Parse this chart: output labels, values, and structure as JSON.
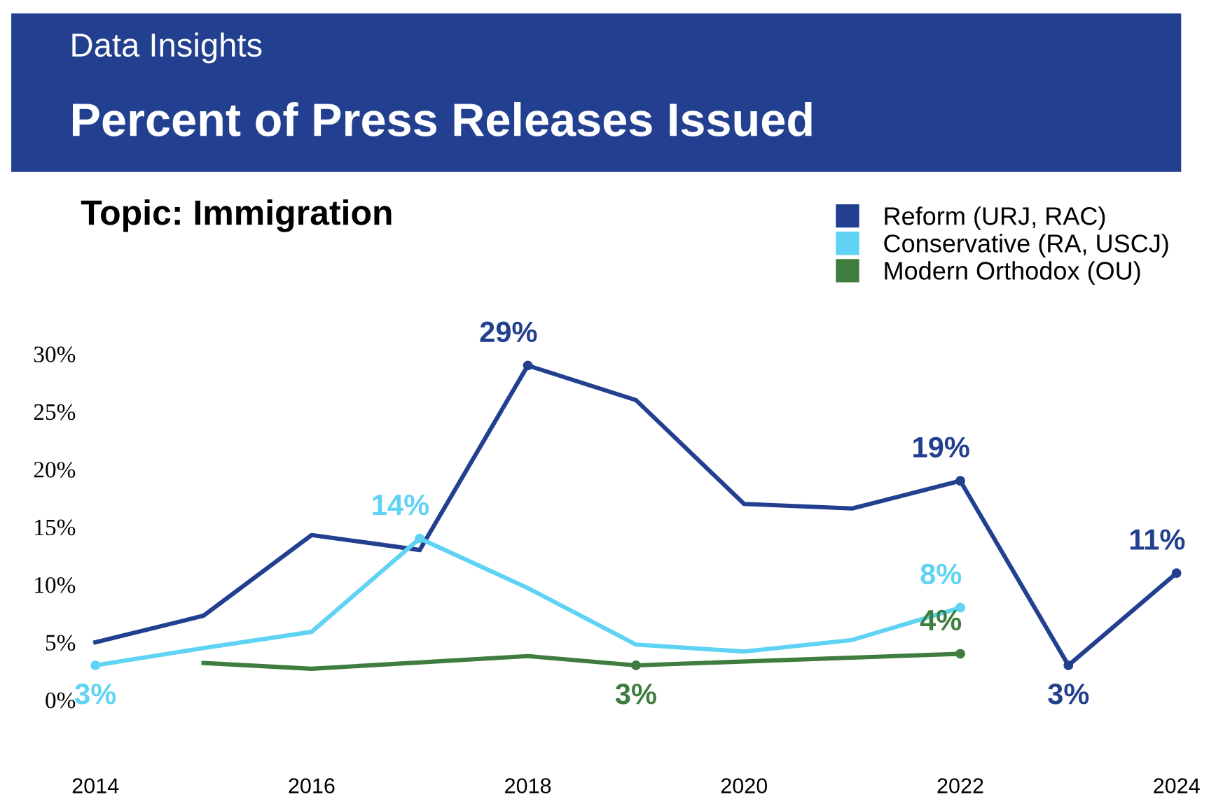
{
  "chart_data": {
    "type": "line",
    "title": "Percent of Press Releases Issued",
    "subtitle": "Topic: Immigration",
    "annotations": [
      "Data Insights"
    ],
    "x": [
      2014,
      2015,
      2016,
      2017,
      2018,
      2019,
      2020,
      2021,
      2022,
      2023,
      2024
    ],
    "series": [
      {
        "name": "Reform (URJ, RAC)",
        "color": "#22408f",
        "values": [
          5,
          7.3,
          14.3,
          13,
          29,
          26,
          17,
          16.6,
          19,
          3,
          11
        ],
        "value_labels": [
          null,
          null,
          null,
          null,
          "29%",
          null,
          null,
          null,
          "19%",
          "3%",
          "11%"
        ]
      },
      {
        "name": "Conservative (RA, USCJ)",
        "color": "#5fd3f3",
        "values": [
          3,
          4.5,
          5.9,
          14,
          9.7,
          4.8,
          4.2,
          5.2,
          8,
          null,
          null
        ],
        "value_labels": [
          "3%",
          null,
          null,
          "14%",
          null,
          null,
          null,
          null,
          "8%",
          null,
          null
        ]
      },
      {
        "name": "Modern Orthodox (OU)",
        "color": "#3f7d3f",
        "x": [
          2015,
          2016,
          2018,
          2019,
          2022
        ],
        "values": [
          3.2,
          2.7,
          3.8,
          3,
          4
        ],
        "value_labels": [
          null,
          null,
          null,
          "3%",
          "4%"
        ]
      }
    ],
    "xlim": [
      2014,
      2024
    ],
    "xticks": [
      2014,
      2016,
      2018,
      2020,
      2022,
      2024
    ],
    "ylim": [
      0,
      30
    ],
    "yticks": [
      {
        "value": 0,
        "label": "0%"
      },
      {
        "value": 5,
        "label": "5%"
      },
      {
        "value": 10,
        "label": "10%"
      },
      {
        "value": 15,
        "label": "15%"
      },
      {
        "value": 20,
        "label": "20%"
      },
      {
        "value": 25,
        "label": "25%"
      },
      {
        "value": 30,
        "label": "30%"
      }
    ],
    "grid": false,
    "legend": "top right"
  }
}
